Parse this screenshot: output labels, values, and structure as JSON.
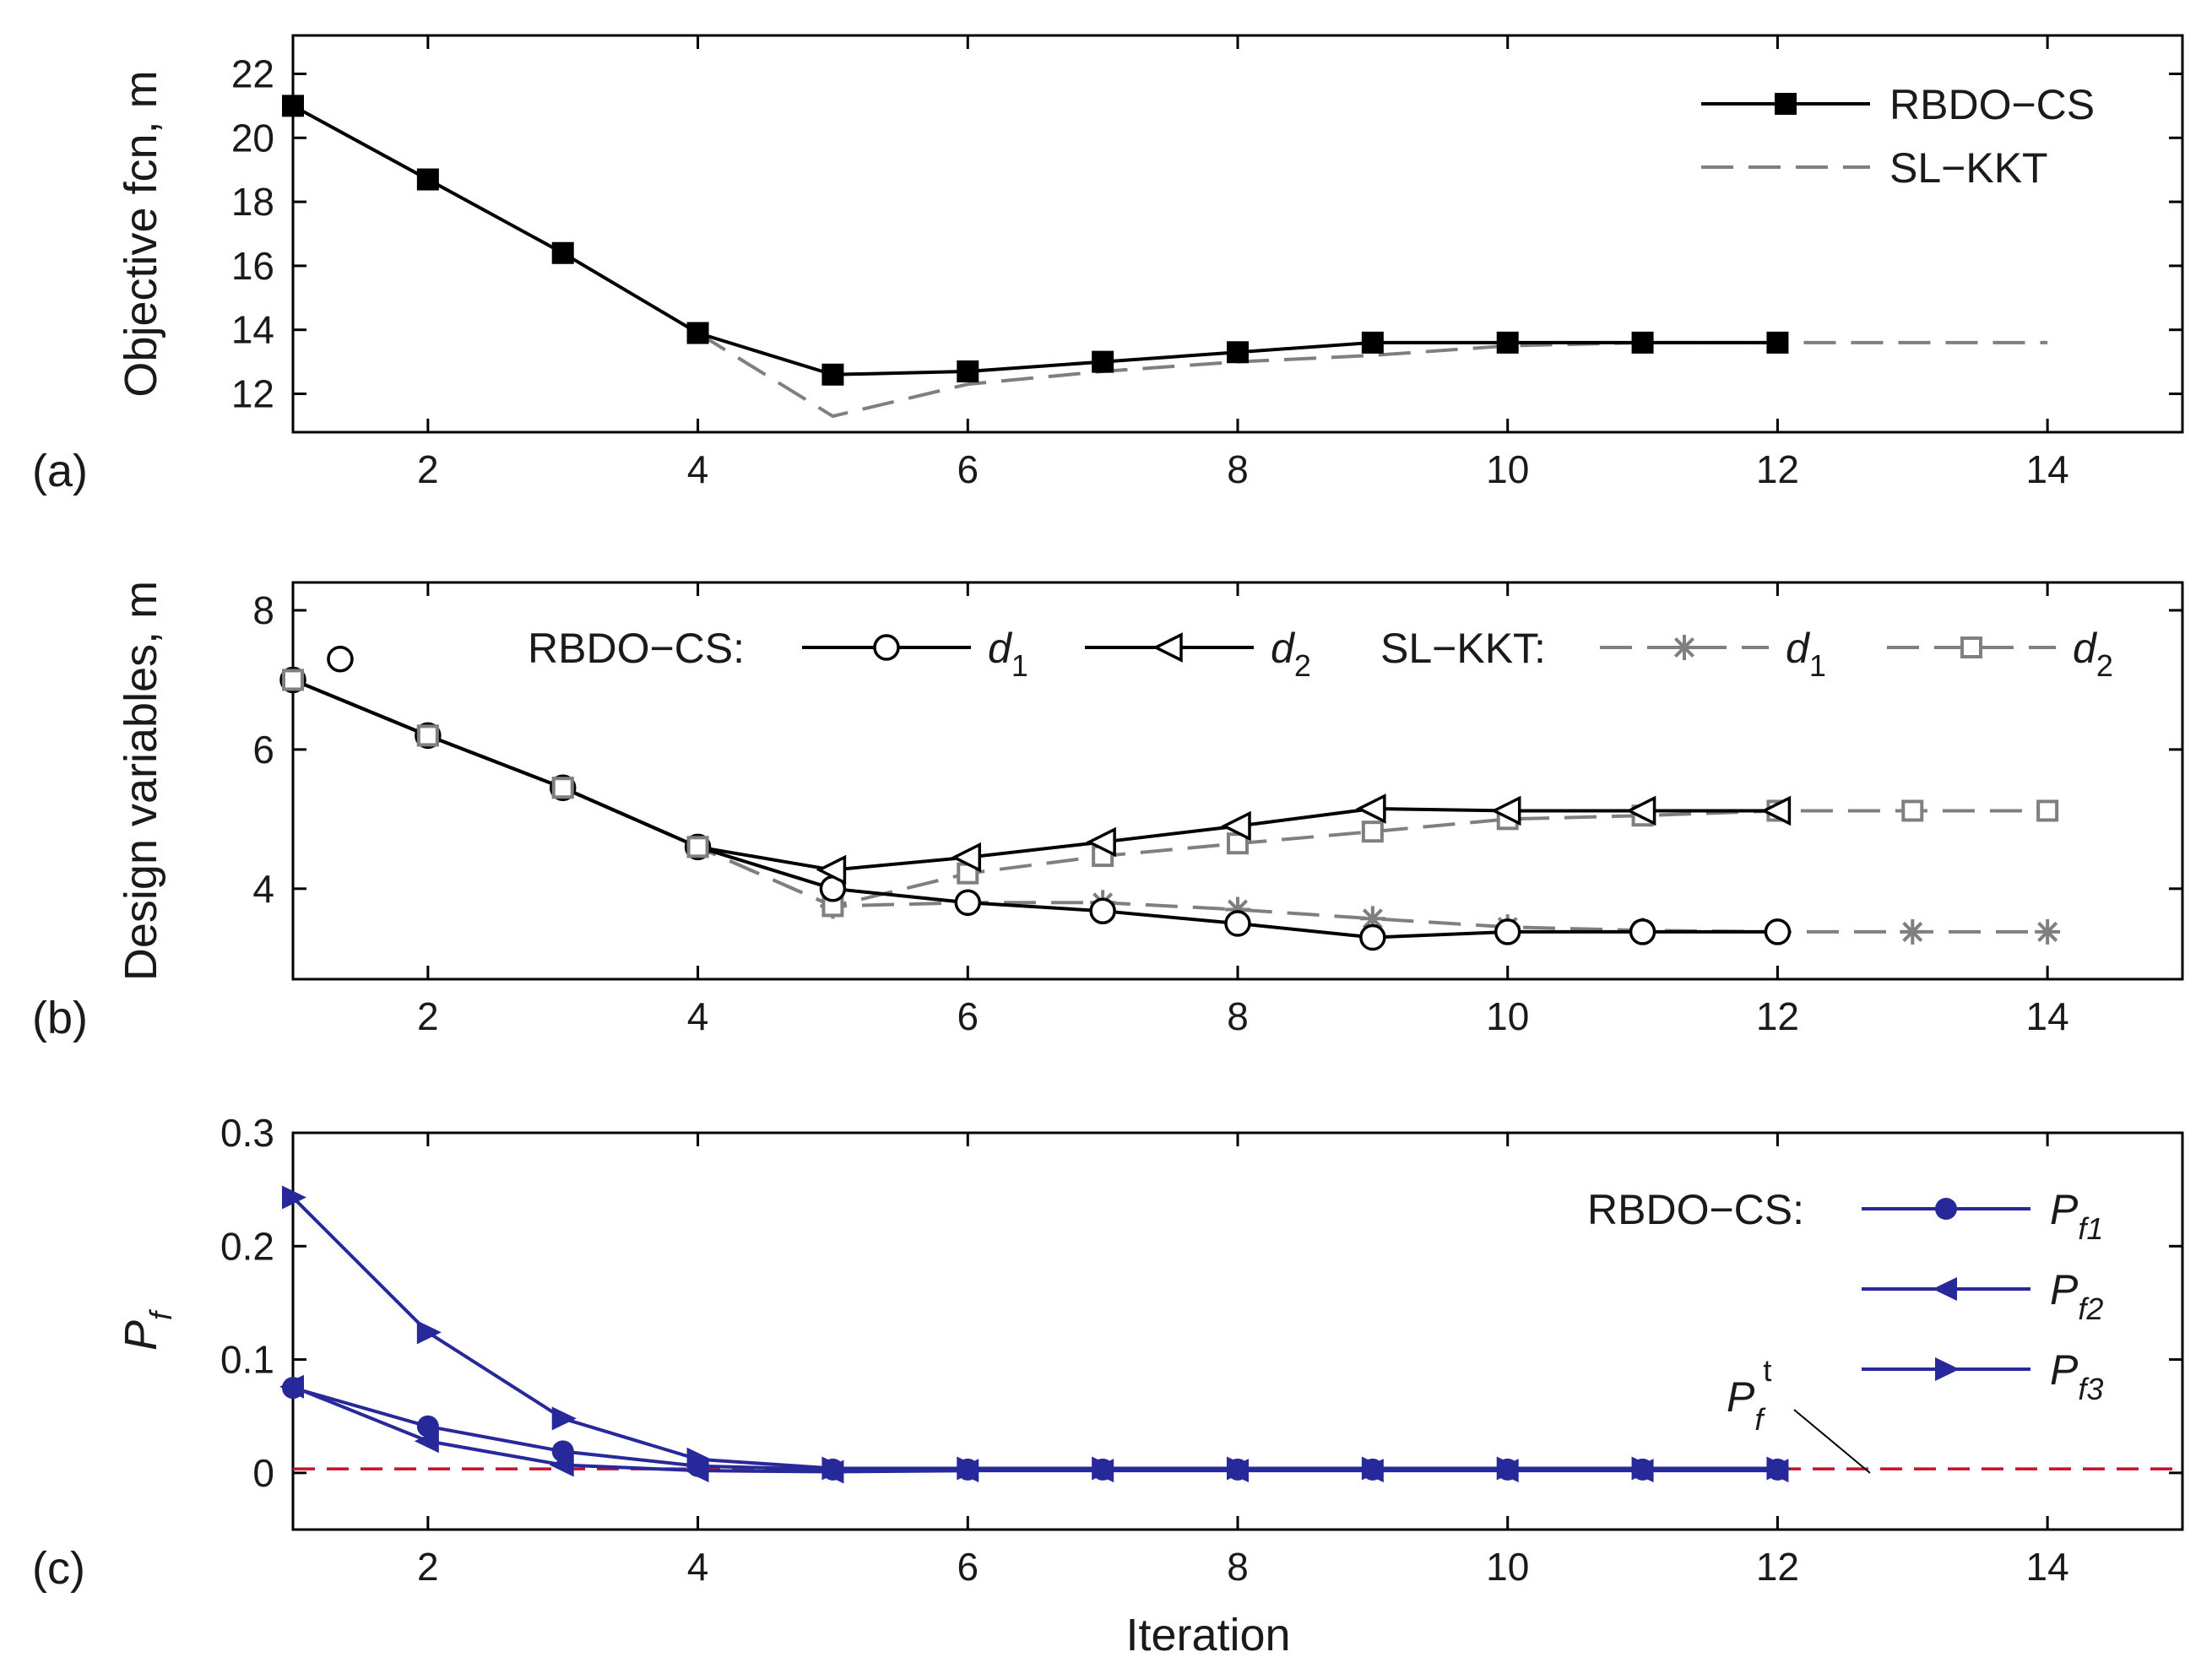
{
  "colors": {
    "black": "#000000",
    "gray": "#7f7f7f",
    "navy": "#27299a",
    "target_red": "#c8102e"
  },
  "panel_labels": [
    "(a)",
    "(b)",
    "(c)"
  ],
  "chart_data": [
    {
      "type": "line",
      "panel": "(a)",
      "ylabel": "Objective fcn, m",
      "xlim": [
        1,
        15
      ],
      "ylim": [
        10.8,
        23.2
      ],
      "xticks": [
        2,
        4,
        6,
        8,
        10,
        12,
        14
      ],
      "yticks": [
        12,
        14,
        16,
        18,
        20,
        22
      ],
      "legend_position": "top-right",
      "series": [
        {
          "name": "RBDO−CS",
          "style": "solid-black-square",
          "x": [
            1,
            2,
            3,
            4,
            5,
            6,
            7,
            8,
            9,
            10,
            11,
            12
          ],
          "y": [
            21.0,
            18.7,
            16.4,
            13.9,
            12.6,
            12.7,
            13.0,
            13.3,
            13.6,
            13.6,
            13.6,
            13.6
          ]
        },
        {
          "name": "SL−KKT",
          "style": "dashed-gray",
          "x": [
            4,
            5,
            6,
            7,
            8,
            9,
            10,
            11,
            12,
            13,
            14
          ],
          "y": [
            13.9,
            11.3,
            12.3,
            12.7,
            13.0,
            13.2,
            13.5,
            13.6,
            13.6,
            13.6,
            13.6
          ]
        }
      ]
    },
    {
      "type": "line",
      "panel": "(b)",
      "ylabel": "Design variables, m",
      "xlim": [
        1,
        15
      ],
      "ylim": [
        2.7,
        8.4
      ],
      "xticks": [
        2,
        4,
        6,
        8,
        10,
        12,
        14
      ],
      "yticks": [
        4,
        6,
        8
      ],
      "legend_position": "top",
      "legend_groups": [
        "RBDO−CS:",
        "SL−KKT:"
      ],
      "outlier_point": {
        "x": 1.35,
        "y": 7.3
      },
      "series": [
        {
          "name": "d",
          "subscript": "1",
          "group": "RBDO−CS:",
          "style": "solid-black-circle",
          "x": [
            1,
            2,
            3,
            4,
            5,
            6,
            7,
            8,
            9,
            10,
            11,
            12
          ],
          "y": [
            7.0,
            6.2,
            5.45,
            4.6,
            4.0,
            3.8,
            3.68,
            3.5,
            3.3,
            3.38,
            3.38,
            3.38
          ]
        },
        {
          "name": "d",
          "subscript": "2",
          "group": "RBDO−CS:",
          "style": "solid-black-triangle-left",
          "x": [
            1,
            2,
            3,
            4,
            5,
            6,
            7,
            8,
            9,
            10,
            11,
            12
          ],
          "y": [
            7.0,
            6.2,
            5.45,
            4.6,
            4.27,
            4.45,
            4.67,
            4.9,
            5.15,
            5.12,
            5.12,
            5.12
          ]
        },
        {
          "name": "d",
          "subscript": "1",
          "group": "SL−KKT:",
          "style": "dashed-gray-star",
          "x": [
            1,
            2,
            3,
            4,
            5,
            6,
            7,
            8,
            9,
            10,
            11,
            12,
            13,
            14
          ],
          "y": [
            7.0,
            6.2,
            5.45,
            4.6,
            3.75,
            3.8,
            3.8,
            3.7,
            3.57,
            3.45,
            3.4,
            3.38,
            3.38,
            3.38
          ]
        },
        {
          "name": "d",
          "subscript": "2",
          "group": "SL−KKT:",
          "style": "dashed-gray-square",
          "x": [
            1,
            2,
            3,
            4,
            5,
            6,
            7,
            8,
            9,
            10,
            11,
            12,
            13,
            14
          ],
          "y": [
            7.0,
            6.2,
            5.45,
            4.6,
            3.75,
            4.22,
            4.47,
            4.65,
            4.82,
            5.0,
            5.05,
            5.12,
            5.12,
            5.12
          ]
        }
      ]
    },
    {
      "type": "line",
      "panel": "(c)",
      "ylabel": "P",
      "ylabel_sub": "f",
      "xlabel": "Iteration",
      "xlim": [
        1,
        15
      ],
      "ylim": [
        -0.05,
        0.3
      ],
      "xticks": [
        2,
        4,
        6,
        8,
        10,
        12,
        14
      ],
      "yticks": [
        0,
        0.1,
        0.2,
        0.3
      ],
      "legend_position": "right",
      "legend_group": "RBDO−CS:",
      "target": {
        "label": "P",
        "sub": "f",
        "sup": "t",
        "value": 0.0035
      },
      "series": [
        {
          "name": "P",
          "subscript": "f1",
          "style": "navy-circle",
          "x": [
            1,
            2,
            3,
            4,
            5,
            6,
            7,
            8,
            9,
            10,
            11,
            12
          ],
          "y": [
            0.075,
            0.041,
            0.019,
            0.006,
            0.003,
            0.003,
            0.003,
            0.003,
            0.003,
            0.003,
            0.003,
            0.003
          ]
        },
        {
          "name": "P",
          "subscript": "f2",
          "style": "navy-triangle-left",
          "x": [
            1,
            2,
            3,
            4,
            5,
            6,
            7,
            8,
            9,
            10,
            11,
            12
          ],
          "y": [
            0.076,
            0.028,
            0.007,
            0.002,
            0.001,
            0.002,
            0.002,
            0.002,
            0.002,
            0.002,
            0.002,
            0.002
          ]
        },
        {
          "name": "P",
          "subscript": "f3",
          "style": "navy-triangle-right",
          "x": [
            1,
            2,
            3,
            4,
            5,
            6,
            7,
            8,
            9,
            10,
            11,
            12
          ],
          "y": [
            0.243,
            0.124,
            0.048,
            0.012,
            0.004,
            0.004,
            0.004,
            0.004,
            0.004,
            0.004,
            0.004,
            0.004
          ]
        }
      ]
    }
  ]
}
